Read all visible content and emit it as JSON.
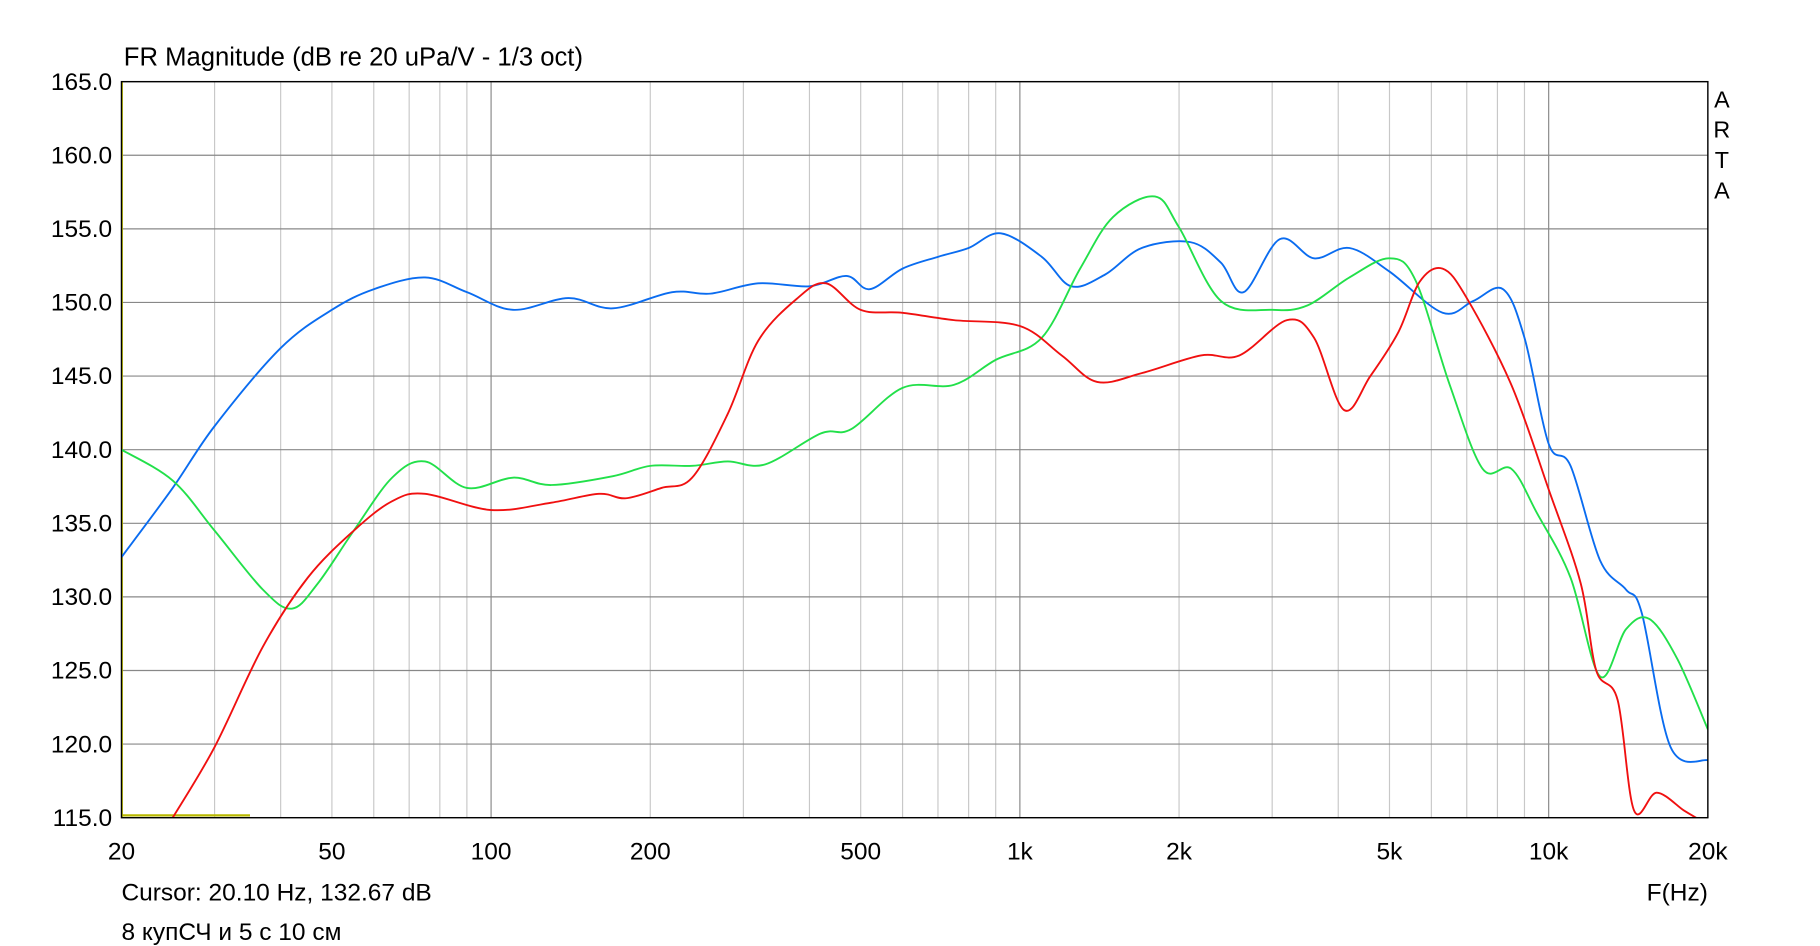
{
  "chart_data": {
    "type": "line",
    "title": "FR Magnitude (dB re 20 uPa/V - 1/3 oct)",
    "xlabel": "F(Hz)",
    "x_scale": "log",
    "xlim": [
      20,
      20000
    ],
    "ylim": [
      115,
      165
    ],
    "grid": true,
    "x_tick_labels": [
      {
        "f": 20,
        "label": "20"
      },
      {
        "f": 50,
        "label": "50"
      },
      {
        "f": 100,
        "label": "100"
      },
      {
        "f": 200,
        "label": "200"
      },
      {
        "f": 500,
        "label": "500"
      },
      {
        "f": 1000,
        "label": "1k"
      },
      {
        "f": 2000,
        "label": "2k"
      },
      {
        "f": 5000,
        "label": "5k"
      },
      {
        "f": 10000,
        "label": "10k"
      },
      {
        "f": 20000,
        "label": "20k"
      }
    ],
    "y_tick_labels": [
      "165.0",
      "160.0",
      "155.0",
      "150.0",
      "145.0",
      "140.0",
      "135.0",
      "130.0",
      "125.0",
      "120.0",
      "115.0"
    ],
    "series": [
      {
        "color": "#0a6cf0",
        "points": [
          [
            20,
            132.7
          ],
          [
            25,
            137.4
          ],
          [
            30,
            141.6
          ],
          [
            40,
            146.9
          ],
          [
            50,
            149.5
          ],
          [
            60,
            150.9
          ],
          [
            75,
            151.7
          ],
          [
            90,
            150.7
          ],
          [
            110,
            149.5
          ],
          [
            140,
            150.3
          ],
          [
            170,
            149.6
          ],
          [
            220,
            150.7
          ],
          [
            260,
            150.6
          ],
          [
            320,
            151.3
          ],
          [
            400,
            151.1
          ],
          [
            470,
            151.8
          ],
          [
            520,
            150.9
          ],
          [
            600,
            152.3
          ],
          [
            700,
            153.1
          ],
          [
            800,
            153.7
          ],
          [
            920,
            154.7
          ],
          [
            1100,
            153.1
          ],
          [
            1250,
            151.1
          ],
          [
            1450,
            151.9
          ],
          [
            1700,
            153.7
          ],
          [
            2100,
            154.1
          ],
          [
            2400,
            152.7
          ],
          [
            2650,
            150.7
          ],
          [
            3100,
            154.3
          ],
          [
            3600,
            153.0
          ],
          [
            4200,
            153.7
          ],
          [
            5000,
            152.1
          ],
          [
            6300,
            149.3
          ],
          [
            7200,
            150.1
          ],
          [
            8200,
            150.9
          ],
          [
            9000,
            147.6
          ],
          [
            10000,
            140.4
          ],
          [
            11000,
            138.9
          ],
          [
            12500,
            132.5
          ],
          [
            14000,
            130.5
          ],
          [
            15000,
            128.9
          ],
          [
            17000,
            119.8
          ],
          [
            20000,
            118.9
          ]
        ]
      },
      {
        "color": "#22e04a",
        "points": [
          [
            20,
            140.0
          ],
          [
            25,
            137.9
          ],
          [
            30,
            134.5
          ],
          [
            37,
            130.5
          ],
          [
            42,
            129.2
          ],
          [
            47,
            130.9
          ],
          [
            55,
            134.5
          ],
          [
            65,
            138.1
          ],
          [
            75,
            139.2
          ],
          [
            90,
            137.4
          ],
          [
            110,
            138.1
          ],
          [
            130,
            137.6
          ],
          [
            170,
            138.2
          ],
          [
            200,
            138.9
          ],
          [
            240,
            138.9
          ],
          [
            280,
            139.2
          ],
          [
            330,
            139.0
          ],
          [
            420,
            141.1
          ],
          [
            480,
            141.4
          ],
          [
            600,
            144.2
          ],
          [
            750,
            144.4
          ],
          [
            900,
            146.1
          ],
          [
            1100,
            147.6
          ],
          [
            1300,
            152.3
          ],
          [
            1500,
            155.8
          ],
          [
            1800,
            157.2
          ],
          [
            2000,
            155.1
          ],
          [
            2400,
            150.1
          ],
          [
            3000,
            149.5
          ],
          [
            3500,
            149.8
          ],
          [
            4200,
            151.7
          ],
          [
            5000,
            153.0
          ],
          [
            5600,
            151.5
          ],
          [
            6500,
            144.4
          ],
          [
            7500,
            138.7
          ],
          [
            8500,
            138.7
          ],
          [
            9500,
            135.7
          ],
          [
            11000,
            131.3
          ],
          [
            12500,
            124.6
          ],
          [
            14000,
            127.8
          ],
          [
            15500,
            128.5
          ],
          [
            17500,
            125.8
          ],
          [
            20000,
            121.0
          ]
        ]
      },
      {
        "color": "#f01010",
        "points": [
          [
            25,
            115.0
          ],
          [
            30,
            119.8
          ],
          [
            37,
            126.6
          ],
          [
            45,
            131.3
          ],
          [
            55,
            134.5
          ],
          [
            65,
            136.5
          ],
          [
            75,
            137.0
          ],
          [
            100,
            135.9
          ],
          [
            130,
            136.4
          ],
          [
            160,
            137.0
          ],
          [
            180,
            136.7
          ],
          [
            210,
            137.4
          ],
          [
            240,
            138.1
          ],
          [
            280,
            142.4
          ],
          [
            320,
            147.4
          ],
          [
            380,
            150.3
          ],
          [
            430,
            151.3
          ],
          [
            500,
            149.5
          ],
          [
            600,
            149.3
          ],
          [
            750,
            148.8
          ],
          [
            1000,
            148.4
          ],
          [
            1200,
            146.4
          ],
          [
            1400,
            144.6
          ],
          [
            1700,
            145.2
          ],
          [
            2200,
            146.4
          ],
          [
            2600,
            146.4
          ],
          [
            3200,
            148.8
          ],
          [
            3600,
            147.6
          ],
          [
            4100,
            142.7
          ],
          [
            4600,
            145.0
          ],
          [
            5200,
            148.0
          ],
          [
            5700,
            151.4
          ],
          [
            6300,
            152.3
          ],
          [
            7000,
            150.3
          ],
          [
            8500,
            144.4
          ],
          [
            10000,
            137.3
          ],
          [
            11500,
            130.9
          ],
          [
            12300,
            125.0
          ],
          [
            13500,
            123.0
          ],
          [
            14500,
            115.5
          ],
          [
            16000,
            116.7
          ],
          [
            18000,
            115.5
          ],
          [
            19000,
            115.0
          ]
        ]
      }
    ],
    "marker": {
      "color": "#b8b800",
      "level": 115,
      "from": 20,
      "to": 35
    }
  },
  "cursor_text": "Cursor: 20.10 Hz, 132.67 dB",
  "caption": "8 купСЧ и 5 с 10 см",
  "logo_letters": [
    "A",
    "R",
    "T",
    "A"
  ]
}
